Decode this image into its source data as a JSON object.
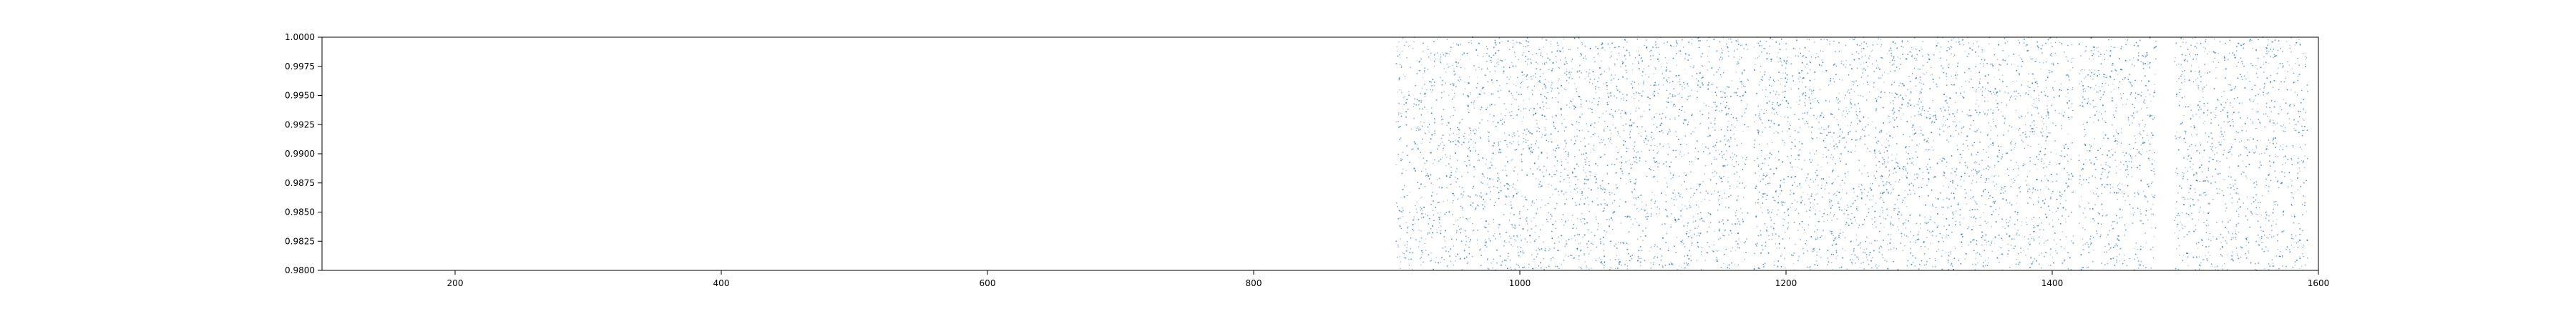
{
  "chart_data": {
    "type": "scatter",
    "title": "",
    "xlabel": "",
    "ylabel": "",
    "xlim": [
      100,
      1600
    ],
    "ylim": [
      0.98,
      1.0
    ],
    "grid": false,
    "legend": "none",
    "x_ticks": [
      {
        "value": 200,
        "label": "200"
      },
      {
        "value": 400,
        "label": "400"
      },
      {
        "value": 600,
        "label": "600"
      },
      {
        "value": 800,
        "label": "800"
      },
      {
        "value": 1000,
        "label": "1000"
      },
      {
        "value": 1200,
        "label": "1200"
      },
      {
        "value": 1400,
        "label": "1400"
      },
      {
        "value": 1600,
        "label": "1600"
      }
    ],
    "y_ticks": [
      {
        "value": 0.98,
        "label": "0.9800"
      },
      {
        "value": 0.9825,
        "label": "0.9825"
      },
      {
        "value": 0.985,
        "label": "0.9850"
      },
      {
        "value": 0.9875,
        "label": "0.9875"
      },
      {
        "value": 0.99,
        "label": "0.9900"
      },
      {
        "value": 0.9925,
        "label": "0.9925"
      },
      {
        "value": 0.995,
        "label": "0.9950"
      },
      {
        "value": 0.9975,
        "label": "0.9975"
      },
      {
        "value": 1.0,
        "label": "1.0000"
      }
    ],
    "point_color": "#1f77b4",
    "series": [
      {
        "x_range": [
          907,
          1592
        ],
        "y_range": [
          0.98,
          1.0
        ],
        "point_count": 7000,
        "distribution": "uniform random",
        "gaps": [
          [
            1172,
            1176
          ],
          [
            1416,
            1420
          ],
          [
            1478,
            1492
          ]
        ]
      }
    ]
  }
}
